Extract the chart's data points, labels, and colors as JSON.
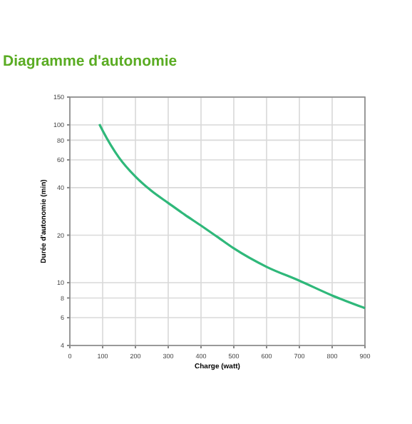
{
  "chart_data": {
    "type": "line",
    "title": "Diagramme d'autonomie",
    "xlabel": "Charge (watt)",
    "ylabel": "Durée d'autonomie (min)",
    "x": [
      90,
      100,
      150,
      200,
      250,
      300,
      350,
      400,
      450,
      500,
      600,
      700,
      800,
      900
    ],
    "series": [
      {
        "color": "#2fb87a",
        "values": [
          101,
          92,
          62,
          47,
          38,
          32,
          27,
          23,
          19.5,
          16.5,
          12.6,
          10.3,
          8.3,
          6.9
        ]
      }
    ],
    "xlim": [
      0,
      900
    ],
    "xticks": [
      0,
      100,
      200,
      300,
      400,
      500,
      600,
      700,
      800,
      900
    ],
    "ylim": [
      4,
      150
    ],
    "yticks": [
      4,
      6,
      8,
      10,
      20,
      40,
      60,
      80,
      100,
      150
    ],
    "log": "y",
    "grid": true,
    "marker": "none",
    "line_style": "solid"
  }
}
